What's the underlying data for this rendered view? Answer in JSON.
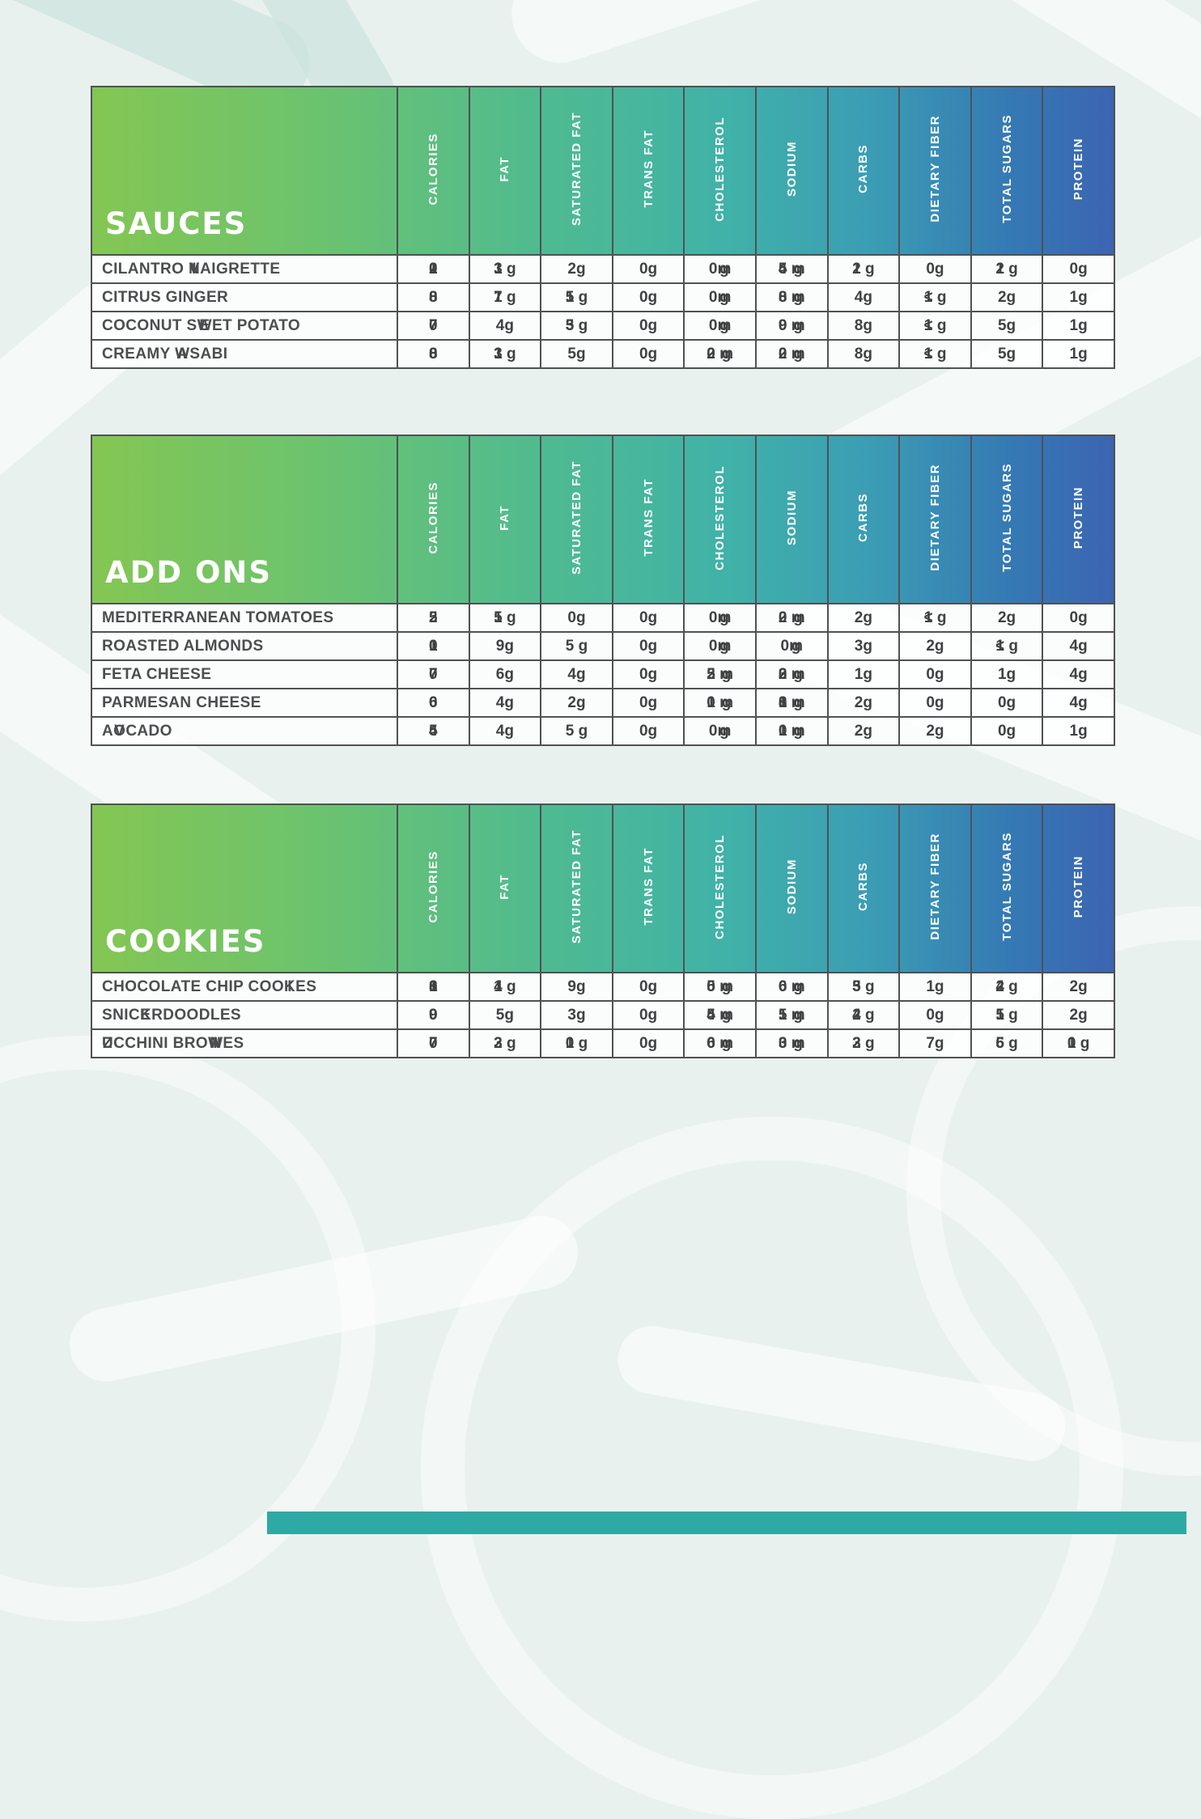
{
  "page": {
    "background_color": "#e9f1ee",
    "pattern_color": "#ffffff",
    "accent_strip_color": "#2ea9a5"
  },
  "colors": {
    "gradient_start": "#84c653",
    "gradient_teal": "#40b2a8",
    "gradient_end": "#3c64b2",
    "grid_border": "#4f5153",
    "header_text": "#ffffff",
    "body_text": "#3f4143"
  },
  "columns": [
    "CALORIES",
    "FAT",
    "SATURATED FAT",
    "TRANS FAT",
    "CHOLESTEROL",
    "SODIUM",
    "CARBS",
    "DIETARY FIBER",
    "TOTAL SUGARS",
    "PROTEIN"
  ],
  "tables": [
    {
      "title": "SAUCES",
      "rows": [
        {
          "label": "CILANTRO [VIN]AIGRETTE",
          "values": [
            "[120]",
            "[13] g",
            "2g",
            "0g",
            "0[mg]",
            "[45] [mg]",
            "[12] g",
            "0g",
            "[12] g",
            "0g"
          ]
        },
        {
          "label": "CITRUS GINGER",
          "values": [
            "[80]",
            "[17] g",
            "[15] g",
            "0g",
            "0[mg]",
            "[80] [mg]",
            "4g",
            "[<1] g",
            "2g",
            "1g"
          ]
        },
        {
          "label": "COCONUT S[WE]ET POTATO",
          "values": [
            "[70]",
            "4g",
            "[35] g",
            "0g",
            "0[mg]",
            "[90] [mg]",
            "8g",
            "[<1] g",
            "5g",
            "1g"
          ]
        },
        {
          "label": "CREAMY [WA]SABI",
          "values": [
            "[80]",
            "[13] g",
            "5g",
            "0g",
            "[20] [mg]",
            "[20] [mg]",
            "8g",
            "[<1] g",
            "5g",
            "1g"
          ]
        }
      ]
    },
    {
      "title": "ADD ONS",
      "rows": [
        {
          "label": "MEDITERRANEAN TOMATOES",
          "values": [
            "[25]",
            "[15] g",
            "0g",
            "0g",
            "0[mg]",
            "[20] [mg]",
            "2g",
            "[<1] g",
            "2g",
            "0g"
          ]
        },
        {
          "label": "ROASTED ALMONDS",
          "values": [
            "[100]",
            "9g",
            "5 g",
            "0g",
            "0[mg]",
            "0[mg]",
            "3g",
            "2g",
            "[<1] g",
            "4g"
          ]
        },
        {
          "label": "FETA CHEESE",
          "values": [
            "[70]",
            "6g",
            "4g",
            "0g",
            "[25] [mg]",
            "[320] [mg]",
            "1g",
            "0g",
            "1g",
            "4g"
          ]
        },
        {
          "label": "PARMESAN CHEESE",
          "values": [
            "[60]",
            "4g",
            "2g",
            "0g",
            "[10] [mg]",
            "[180] [mg]",
            "2g",
            "0g",
            "0g",
            "4g"
          ]
        },
        {
          "label": "A[VO]CADO",
          "values": [
            "[45]",
            "4g",
            "5 g",
            "0g",
            "0[mg]",
            "[10] [mg]",
            "2g",
            "2g",
            "0g",
            "1g"
          ]
        }
      ]
    },
    {
      "title": "COOKIES",
      "rows": [
        {
          "label": "CHOCOLATE CHIP COO[KI]ES",
          "values": [
            "[180]",
            "[14] g",
            "9g",
            "0g",
            "[50] [mg]",
            "[60] [mg]",
            "[35] g",
            "1g",
            "[24] g",
            "2g"
          ]
        },
        {
          "label": "SNIC[KE]RDOODLES",
          "values": [
            "[90]",
            "5g",
            "3g",
            "0g",
            "[45] [mg]",
            "[15] [mg]",
            "[24] g",
            "0g",
            "[15] g",
            "2g"
          ]
        },
        {
          "label": "[ZU]CCHINI BRO[WNI]ES",
          "values": [
            "[70]",
            "[23] g",
            "[10] g",
            "0g",
            "[60] [mg]",
            "[30] [mg]",
            "[23] g",
            "7g",
            "[56] g",
            "[10] g"
          ]
        }
      ]
    }
  ]
}
